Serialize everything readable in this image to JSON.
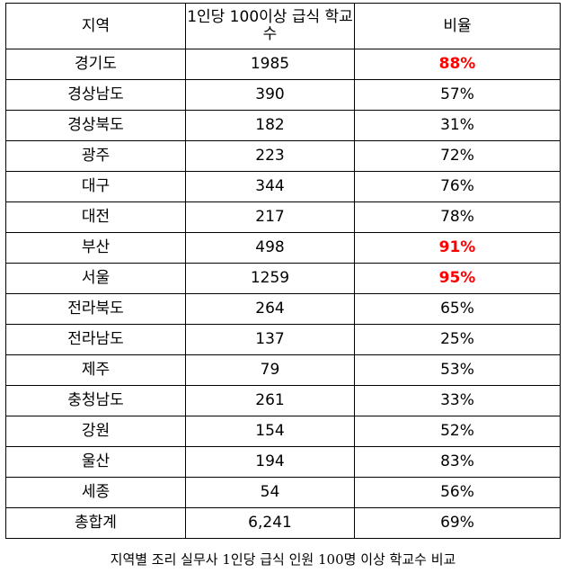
{
  "headers": {
    "region": "지역",
    "count": "1인당 100이상 급식 학교수",
    "ratio": "비율"
  },
  "rows": [
    {
      "region": "경기도",
      "count": "1985",
      "ratio": "88%",
      "highlight": true
    },
    {
      "region": "경상남도",
      "count": "390",
      "ratio": "57%",
      "highlight": false
    },
    {
      "region": "경상북도",
      "count": "182",
      "ratio": "31%",
      "highlight": false
    },
    {
      "region": "광주",
      "count": "223",
      "ratio": "72%",
      "highlight": false
    },
    {
      "region": "대구",
      "count": "344",
      "ratio": "76%",
      "highlight": false
    },
    {
      "region": "대전",
      "count": "217",
      "ratio": "78%",
      "highlight": false
    },
    {
      "region": "부산",
      "count": "498",
      "ratio": "91%",
      "highlight": true
    },
    {
      "region": "서울",
      "count": "1259",
      "ratio": "95%",
      "highlight": true
    },
    {
      "region": "전라북도",
      "count": "264",
      "ratio": "65%",
      "highlight": false
    },
    {
      "region": "전라남도",
      "count": "137",
      "ratio": "25%",
      "highlight": false
    },
    {
      "region": "제주",
      "count": "79",
      "ratio": "53%",
      "highlight": false
    },
    {
      "region": "충청남도",
      "count": "261",
      "ratio": "33%",
      "highlight": false
    },
    {
      "region": "강원",
      "count": "154",
      "ratio": "52%",
      "highlight": false
    },
    {
      "region": "울산",
      "count": "194",
      "ratio": "83%",
      "highlight": false
    },
    {
      "region": "세종",
      "count": "54",
      "ratio": "56%",
      "highlight": false
    }
  ],
  "total": {
    "region": "총합계",
    "count": "6,241",
    "ratio": "69%"
  },
  "caption": "지역별 조리 실무사 1인당 급식 인원 100명 이상 학교수 비교",
  "colors": {
    "highlight": "#ff0000",
    "border": "#000000"
  }
}
